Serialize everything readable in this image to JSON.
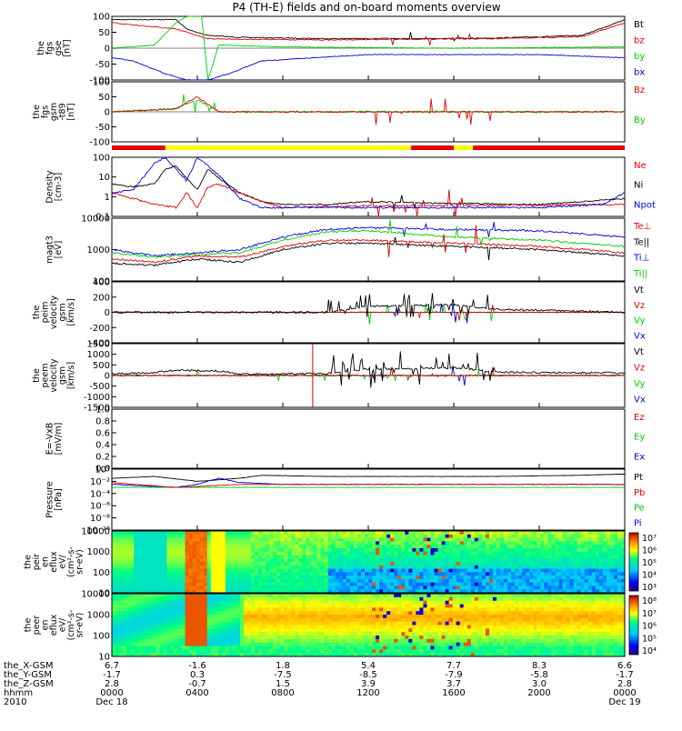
{
  "title": "P4 (TH-E) fields and on-board moments overview",
  "colors": {
    "black": "#000000",
    "red": "#e00000",
    "green": "#00cc00",
    "blue": "#0000dd",
    "yellow": "#ffff00",
    "axis": "#000000"
  },
  "panels": [
    {
      "id": "fgs-gse",
      "ylabel": [
        "the",
        "fgs",
        "gse",
        "[nT]"
      ],
      "ytick_labels": [
        "100",
        "50",
        "0",
        "-50",
        "-100"
      ],
      "legend": [
        {
          "text": "Bt",
          "color": "black"
        },
        {
          "text": "bz",
          "color": "red"
        },
        {
          "text": "by",
          "color": "green"
        },
        {
          "text": "bx",
          "color": "blue"
        }
      ]
    },
    {
      "id": "fgs-gsm",
      "ylabel": [
        "the",
        "fgs",
        "gsm",
        "-t89",
        "[nT]"
      ],
      "ytick_labels": [
        "100",
        "50",
        "0",
        "-50",
        "-100"
      ],
      "legend": [
        {
          "text": "Bz",
          "color": "red"
        },
        {
          "text": "By",
          "color": "green"
        }
      ]
    },
    {
      "id": "density",
      "ylabel": [
        "Density",
        "[cm-3]"
      ],
      "ytick_labels": [
        "100",
        "10",
        "1",
        "0.1"
      ],
      "legend": [
        {
          "text": "Ne",
          "color": "red"
        },
        {
          "text": "Ni",
          "color": "black"
        },
        {
          "text": "Npot",
          "color": "blue"
        }
      ]
    },
    {
      "id": "temperature",
      "ylabel": [
        "magt3",
        "[eV]"
      ],
      "ytick_labels": [
        "10000",
        "1000",
        "100"
      ],
      "legend": [
        {
          "text": "Te⊥",
          "color": "red"
        },
        {
          "text": "Te||",
          "color": "black"
        },
        {
          "text": "Ti⊥",
          "color": "blue"
        },
        {
          "text": "Ti||",
          "color": "green"
        }
      ]
    },
    {
      "id": "peim-velocity",
      "ylabel": [
        "the",
        "peim",
        "velocity",
        "gsm",
        "[km/s]"
      ],
      "ytick_labels": [
        "400",
        "200",
        "0",
        "-200",
        "-400"
      ],
      "legend": [
        {
          "text": "Vt",
          "color": "black"
        },
        {
          "text": "Vz",
          "color": "red"
        },
        {
          "text": "Vy",
          "color": "green"
        },
        {
          "text": "Vx",
          "color": "blue"
        }
      ]
    },
    {
      "id": "peem-velocity",
      "ylabel": [
        "the",
        "peem",
        "velocity",
        "gsm",
        "[km/s]"
      ],
      "ytick_labels": [
        "1500",
        "1000",
        "500",
        "0",
        "-500",
        "-1000",
        "-1500"
      ],
      "legend": [
        {
          "text": "Vt",
          "color": "black"
        },
        {
          "text": "Vz",
          "color": "red"
        },
        {
          "text": "Vy",
          "color": "green"
        },
        {
          "text": "Vx",
          "color": "blue"
        }
      ]
    },
    {
      "id": "efield",
      "ylabel": [
        "E=-VxB",
        "[mV/m]"
      ],
      "ytick_labels": [
        "1.0",
        "0.8",
        "0.6",
        "0.4",
        "0.2",
        "0.0"
      ],
      "legend": [
        {
          "text": "Ez",
          "color": "red"
        },
        {
          "text": "Ey",
          "color": "green"
        },
        {
          "text": "Ex",
          "color": "blue"
        }
      ]
    },
    {
      "id": "pressure",
      "ylabel": [
        "Pressure",
        "[nPa]"
      ],
      "ytick_labels": [
        "10⁰",
        "10⁻²",
        "10⁻⁴",
        "10⁻⁶",
        "10⁻⁸",
        "10⁻¹⁰"
      ],
      "legend": [
        {
          "text": "Pt",
          "color": "black"
        },
        {
          "text": "Pb",
          "color": "red"
        },
        {
          "text": "Pe",
          "color": "green"
        },
        {
          "text": "Pi",
          "color": "blue"
        }
      ]
    },
    {
      "id": "peir-spec",
      "ylabel": [
        "the",
        "peir",
        "en",
        "eflux",
        "eV/",
        "(cm²-s-",
        "sr-eV)"
      ],
      "ytick_labels": [
        "10000",
        "1000",
        "100",
        "10"
      ],
      "colorbar_labels": [
        "10⁷",
        "10⁶",
        "10⁵",
        "10⁴",
        "10³"
      ]
    },
    {
      "id": "peer-spec",
      "ylabel": [
        "the",
        "peer",
        "en",
        "eflux",
        "eV/",
        "(cm²-s-",
        "sr-eV)"
      ],
      "ytick_labels": [
        "10000",
        "1000",
        "100",
        "10"
      ],
      "colorbar_labels": [
        "10⁸",
        "10⁷",
        "10⁶",
        "10⁵",
        "10⁴"
      ]
    }
  ],
  "xaxis": {
    "row_labels": [
      "the_X-GSM",
      "the_Y-GSM",
      "the_Z-GSM",
      "hhmm",
      "2010"
    ],
    "ticks": [
      {
        "x": "6.7",
        "y": "-1.7",
        "z": "2.8",
        "hhmm": "0000",
        "date": "Dec 18"
      },
      {
        "x": "-1.6",
        "y": "0.3",
        "z": "-0.7",
        "hhmm": "0400",
        "date": ""
      },
      {
        "x": "1.8",
        "y": "-7.5",
        "z": "1.5",
        "hhmm": "0800",
        "date": ""
      },
      {
        "x": "5.4",
        "y": "-8.5",
        "z": "3.9",
        "hhmm": "1200",
        "date": ""
      },
      {
        "x": "7.7",
        "y": "-7.9",
        "z": "3.7",
        "hhmm": "1600",
        "date": ""
      },
      {
        "x": "8.3",
        "y": "-5.8",
        "z": "3.0",
        "hhmm": "2000",
        "date": ""
      },
      {
        "x": "6.6",
        "y": "-1.7",
        "z": "2.8",
        "hhmm": "0000",
        "date": "Dec 19"
      }
    ]
  },
  "chart_data": {
    "type": "line",
    "title": "P4 (TH-E) fields and on-board moments overview",
    "x_ticks_hhmm": [
      "0000",
      "0400",
      "0800",
      "1200",
      "1600",
      "2000",
      "0000"
    ],
    "series_gse_Bt": {
      "name": "Bt",
      "x_hours": [
        0,
        2,
        4,
        6,
        8,
        10,
        12,
        14,
        16,
        18,
        20,
        22,
        24
      ],
      "values": [
        90,
        75,
        40,
        45,
        38,
        36,
        36,
        36,
        37,
        38,
        42,
        50,
        90
      ]
    },
    "series_density_Ni": {
      "name": "Ni",
      "x_hours": [
        0,
        2,
        3,
        4,
        5,
        6,
        7,
        8,
        10,
        12,
        16,
        20,
        24
      ],
      "values": [
        10,
        1.5,
        30,
        3,
        15,
        5,
        1,
        0.4,
        0.3,
        0.5,
        0.4,
        0.4,
        0.8
      ]
    },
    "series_temp_Te_par": {
      "name": "Te||",
      "x_hours": [
        0,
        2,
        4,
        6,
        8,
        10,
        12,
        16,
        20,
        24
      ],
      "values": [
        300,
        200,
        350,
        400,
        900,
        1200,
        1000,
        700,
        600,
        400
      ]
    }
  }
}
